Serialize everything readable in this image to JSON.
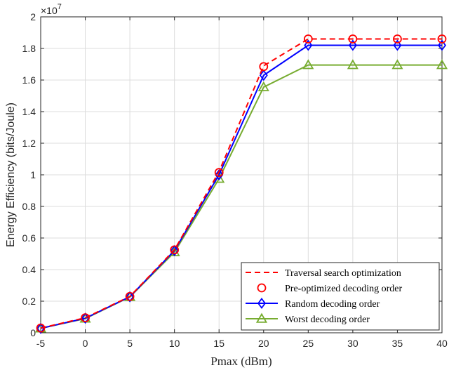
{
  "chart_data": {
    "type": "line",
    "title": "",
    "xlabel": "Pmax (dBm)",
    "ylabel": "Energy Efficiency (bits/Joule)",
    "y_multiplier_base": "×10",
    "y_multiplier_exp": "7",
    "x": [
      -5,
      0,
      5,
      10,
      15,
      20,
      25,
      30,
      35,
      40
    ],
    "xlim": [
      -5,
      40
    ],
    "ylim": [
      0,
      2
    ],
    "xticks": [
      -5,
      0,
      5,
      10,
      15,
      20,
      25,
      30,
      35,
      40
    ],
    "yticks": [
      0,
      0.2,
      0.4,
      0.6,
      0.8,
      1,
      1.2,
      1.4,
      1.6,
      1.8,
      2
    ],
    "ytick_labels": [
      "0",
      "0.2",
      "0.4",
      "0.6",
      "0.8",
      "1",
      "1.2",
      "1.4",
      "1.6",
      "1.8",
      "2"
    ],
    "grid": true,
    "legend_position": "bottom-right",
    "series": [
      {
        "name": "Traversal search optimization",
        "color": "#ff0000",
        "line": "dashed",
        "marker": "none",
        "values": [
          0.03,
          0.095,
          0.23,
          0.525,
          1.02,
          1.69,
          1.86,
          1.86,
          1.86,
          1.86
        ]
      },
      {
        "name": "Pre-optimized decoding order",
        "color": "#ff0000",
        "line": "none",
        "marker": "circle",
        "values": [
          0.03,
          0.095,
          0.23,
          0.525,
          1.015,
          1.685,
          1.86,
          1.86,
          1.86,
          1.86
        ]
      },
      {
        "name": "Random decoding order",
        "color": "#0000ff",
        "line": "solid",
        "marker": "diamond",
        "values": [
          0.028,
          0.092,
          0.228,
          0.52,
          1.0,
          1.63,
          1.82,
          1.82,
          1.82,
          1.82
        ]
      },
      {
        "name": "Worst decoding order",
        "color": "#77ac30",
        "line": "solid",
        "marker": "triangle",
        "values": [
          0.028,
          0.09,
          0.227,
          0.51,
          0.975,
          1.555,
          1.695,
          1.695,
          1.695,
          1.695
        ]
      }
    ]
  }
}
